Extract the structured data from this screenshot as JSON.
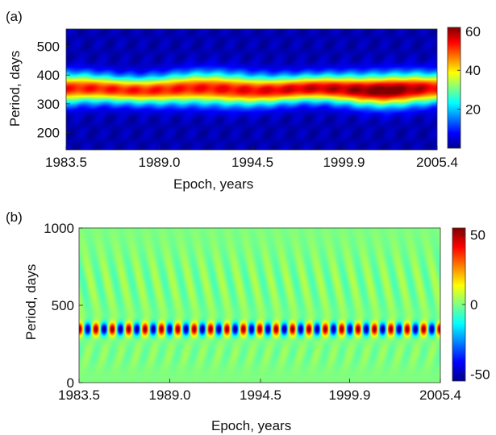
{
  "chart_data": [
    {
      "type": "heatmap",
      "panel_label": "(a)",
      "xlabel": "Epoch, years",
      "ylabel": "Period, days",
      "xlim": [
        1983.5,
        2005.4
      ],
      "ylim": [
        140,
        560
      ],
      "x_ticks": [
        "1983.5",
        "1989.0",
        "1994.5",
        "1999.9",
        "2005.4"
      ],
      "x_tick_values": [
        1983.5,
        1989.0,
        1994.5,
        1999.9,
        2005.4
      ],
      "y_ticks": [
        "200",
        "300",
        "400",
        "500"
      ],
      "y_tick_values": [
        200,
        300,
        400,
        500
      ],
      "colorbar": {
        "range": [
          0,
          62
        ],
        "ticks": [
          "20",
          "40",
          "60"
        ],
        "tick_values": [
          20,
          40,
          60
        ]
      },
      "ridge_period_days": 350,
      "ridge_amplitude": [
        {
          "epoch": 1983.5,
          "value": 50
        },
        {
          "epoch": 1989.0,
          "value": 50
        },
        {
          "epoch": 1994.5,
          "value": 52
        },
        {
          "epoch": 1999.9,
          "value": 56
        },
        {
          "epoch": 2002.5,
          "value": 62
        },
        {
          "epoch": 2005.4,
          "value": 52
        }
      ]
    },
    {
      "type": "heatmap",
      "panel_label": "(b)",
      "xlabel": "Epoch, years",
      "ylabel": "Period, days",
      "xlim": [
        1983.5,
        2005.4
      ],
      "ylim": [
        0,
        1000
      ],
      "x_ticks": [
        "1983.5",
        "1989.0",
        "1994.5",
        "1999.9",
        "2005.4"
      ],
      "x_tick_values": [
        1983.5,
        1989.0,
        1994.5,
        1999.9,
        2005.4
      ],
      "y_ticks": [
        "0",
        "500",
        "1000"
      ],
      "y_tick_values": [
        0,
        500,
        1000
      ],
      "colorbar": {
        "range": [
          -55,
          55
        ],
        "ticks": [
          "50",
          "0",
          "-50"
        ],
        "tick_values": [
          50,
          0,
          -50
        ]
      },
      "band_period_days": 345,
      "oscillation_cycles": 22,
      "amplitude": 55
    }
  ],
  "colors": {
    "jet": [
      "#00008f",
      "#0000ff",
      "#00ffff",
      "#ffff00",
      "#ff0000",
      "#800000"
    ],
    "background": "#ffffff",
    "text": "#111111"
  }
}
